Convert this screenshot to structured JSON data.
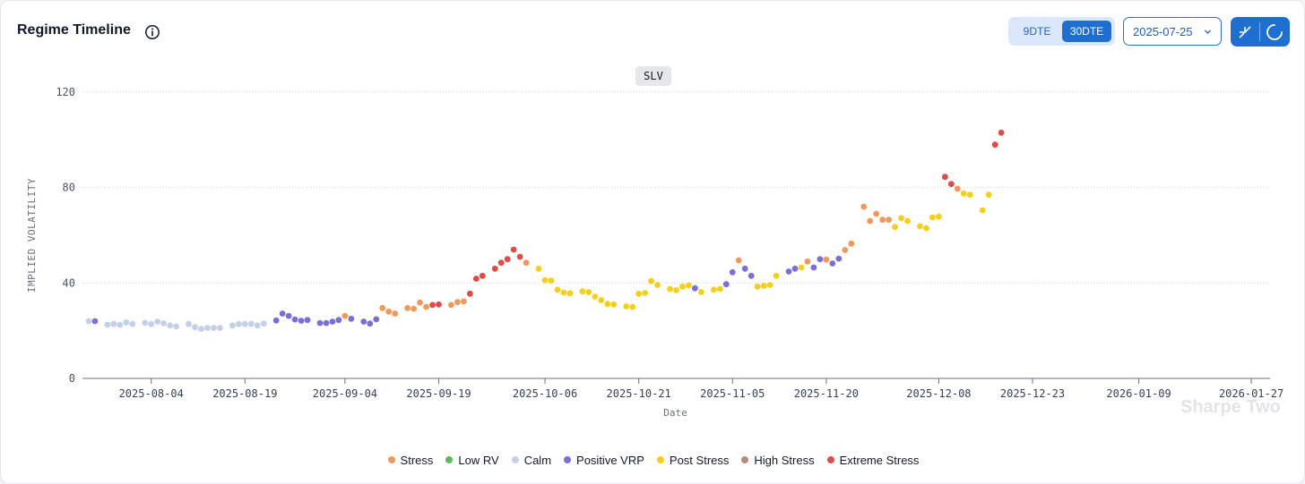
{
  "header": {
    "title": "Regime Timeline",
    "toggle": {
      "option_a": "9DTE",
      "option_b": "30DTE",
      "selected": "30DTE"
    },
    "date_select": {
      "value": "2025-07-25"
    }
  },
  "ticker_label": "SLV",
  "watermark": "Sharpe Two",
  "colors": {
    "Stress": "#f0995a",
    "Low RV": "#5fb85a",
    "Calm": "#c5cfe8",
    "Positive VRP": "#7a6fd6",
    "Post Stress": "#f5cf1a",
    "High Stress": "#b58b7d",
    "Extreme Stress": "#e04b45",
    "accent": "#1f6fd1"
  },
  "chart_data": {
    "type": "scatter",
    "xlabel": "Date",
    "ylabel": "IMPLIED VOLATILITY",
    "ylim": [
      0,
      120
    ],
    "yticks": [
      0,
      40,
      80,
      120
    ],
    "xlim": [
      "2025-07-24",
      "2026-01-30"
    ],
    "xticks": [
      "2025-08-04",
      "2025-08-19",
      "2025-09-04",
      "2025-09-19",
      "2025-10-06",
      "2025-10-21",
      "2025-11-05",
      "2025-11-20",
      "2025-12-08",
      "2025-12-23",
      "2026-01-09",
      "2026-01-27"
    ],
    "grid": true,
    "legend_position": "bottom",
    "legend": [
      "Stress",
      "Low RV",
      "Calm",
      "Positive VRP",
      "Post Stress",
      "High Stress",
      "Extreme Stress"
    ],
    "points": [
      {
        "date": "2025-07-25",
        "value": 24,
        "regime": "Calm"
      },
      {
        "date": "2025-07-26",
        "value": 24,
        "regime": "Positive VRP"
      },
      {
        "date": "2025-07-28",
        "value": 22.5,
        "regime": "Calm"
      },
      {
        "date": "2025-07-29",
        "value": 22.8,
        "regime": "Calm"
      },
      {
        "date": "2025-07-30",
        "value": 22.5,
        "regime": "Calm"
      },
      {
        "date": "2025-07-31",
        "value": 23.5,
        "regime": "Calm"
      },
      {
        "date": "2025-08-01",
        "value": 22.8,
        "regime": "Calm"
      },
      {
        "date": "2025-08-03",
        "value": 23.3,
        "regime": "Calm"
      },
      {
        "date": "2025-08-04",
        "value": 22.8,
        "regime": "Calm"
      },
      {
        "date": "2025-08-05",
        "value": 23.8,
        "regime": "Calm"
      },
      {
        "date": "2025-08-06",
        "value": 23.1,
        "regime": "Calm"
      },
      {
        "date": "2025-08-07",
        "value": 22.2,
        "regime": "Calm"
      },
      {
        "date": "2025-08-08",
        "value": 21.8,
        "regime": "Calm"
      },
      {
        "date": "2025-08-10",
        "value": 22.8,
        "regime": "Calm"
      },
      {
        "date": "2025-08-11",
        "value": 21.5,
        "regime": "Calm"
      },
      {
        "date": "2025-08-12",
        "value": 20.8,
        "regime": "Calm"
      },
      {
        "date": "2025-08-13",
        "value": 21.2,
        "regime": "Calm"
      },
      {
        "date": "2025-08-14",
        "value": 21.2,
        "regime": "Calm"
      },
      {
        "date": "2025-08-15",
        "value": 21.2,
        "regime": "Calm"
      },
      {
        "date": "2025-08-17",
        "value": 22.2,
        "regime": "Calm"
      },
      {
        "date": "2025-08-18",
        "value": 22.8,
        "regime": "Calm"
      },
      {
        "date": "2025-08-19",
        "value": 22.8,
        "regime": "Calm"
      },
      {
        "date": "2025-08-20",
        "value": 22.8,
        "regime": "Calm"
      },
      {
        "date": "2025-08-21",
        "value": 22.2,
        "regime": "Calm"
      },
      {
        "date": "2025-08-22",
        "value": 23,
        "regime": "Calm"
      },
      {
        "date": "2025-08-24",
        "value": 24.3,
        "regime": "Positive VRP"
      },
      {
        "date": "2025-08-25",
        "value": 27.2,
        "regime": "Positive VRP"
      },
      {
        "date": "2025-08-26",
        "value": 26.2,
        "regime": "Positive VRP"
      },
      {
        "date": "2025-08-27",
        "value": 24.7,
        "regime": "Positive VRP"
      },
      {
        "date": "2025-08-28",
        "value": 24.2,
        "regime": "Positive VRP"
      },
      {
        "date": "2025-08-29",
        "value": 24.5,
        "regime": "Positive VRP"
      },
      {
        "date": "2025-08-31",
        "value": 23.2,
        "regime": "Positive VRP"
      },
      {
        "date": "2025-09-01",
        "value": 23.2,
        "regime": "Positive VRP"
      },
      {
        "date": "2025-09-02",
        "value": 23.8,
        "regime": "Positive VRP"
      },
      {
        "date": "2025-09-03",
        "value": 24.5,
        "regime": "Positive VRP"
      },
      {
        "date": "2025-09-04",
        "value": 26.2,
        "regime": "Stress"
      },
      {
        "date": "2025-09-05",
        "value": 25,
        "regime": "Positive VRP"
      },
      {
        "date": "2025-09-07",
        "value": 23.8,
        "regime": "Positive VRP"
      },
      {
        "date": "2025-09-08",
        "value": 23,
        "regime": "Positive VRP"
      },
      {
        "date": "2025-09-09",
        "value": 24.8,
        "regime": "Positive VRP"
      },
      {
        "date": "2025-09-10",
        "value": 29.5,
        "regime": "Stress"
      },
      {
        "date": "2025-09-11",
        "value": 28,
        "regime": "Stress"
      },
      {
        "date": "2025-09-12",
        "value": 27.2,
        "regime": "Stress"
      },
      {
        "date": "2025-09-14",
        "value": 29.5,
        "regime": "Stress"
      },
      {
        "date": "2025-09-15",
        "value": 29.2,
        "regime": "Stress"
      },
      {
        "date": "2025-09-16",
        "value": 31.8,
        "regime": "Stress"
      },
      {
        "date": "2025-09-17",
        "value": 30,
        "regime": "Stress"
      },
      {
        "date": "2025-09-18",
        "value": 30.8,
        "regime": "Extreme Stress"
      },
      {
        "date": "2025-09-19",
        "value": 31,
        "regime": "Extreme Stress"
      },
      {
        "date": "2025-09-21",
        "value": 30.8,
        "regime": "Stress"
      },
      {
        "date": "2025-09-22",
        "value": 32,
        "regime": "Stress"
      },
      {
        "date": "2025-09-23",
        "value": 32.3,
        "regime": "Stress"
      },
      {
        "date": "2025-09-24",
        "value": 35.5,
        "regime": "Extreme Stress"
      },
      {
        "date": "2025-09-25",
        "value": 41.8,
        "regime": "Extreme Stress"
      },
      {
        "date": "2025-09-26",
        "value": 43,
        "regime": "Extreme Stress"
      },
      {
        "date": "2025-09-28",
        "value": 46,
        "regime": "Extreme Stress"
      },
      {
        "date": "2025-09-29",
        "value": 48.5,
        "regime": "Extreme Stress"
      },
      {
        "date": "2025-09-30",
        "value": 50,
        "regime": "Extreme Stress"
      },
      {
        "date": "2025-10-01",
        "value": 54,
        "regime": "Extreme Stress"
      },
      {
        "date": "2025-10-02",
        "value": 51,
        "regime": "Extreme Stress"
      },
      {
        "date": "2025-10-03",
        "value": 48.5,
        "regime": "Stress"
      },
      {
        "date": "2025-10-05",
        "value": 46,
        "regime": "Post Stress"
      },
      {
        "date": "2025-10-06",
        "value": 41.2,
        "regime": "Post Stress"
      },
      {
        "date": "2025-10-07",
        "value": 41,
        "regime": "Post Stress"
      },
      {
        "date": "2025-10-08",
        "value": 37.2,
        "regime": "Post Stress"
      },
      {
        "date": "2025-10-09",
        "value": 36,
        "regime": "Post Stress"
      },
      {
        "date": "2025-10-10",
        "value": 35.7,
        "regime": "Post Stress"
      },
      {
        "date": "2025-10-12",
        "value": 36.5,
        "regime": "Post Stress"
      },
      {
        "date": "2025-10-13",
        "value": 36.2,
        "regime": "Post Stress"
      },
      {
        "date": "2025-10-14",
        "value": 34.3,
        "regime": "Post Stress"
      },
      {
        "date": "2025-10-15",
        "value": 32.8,
        "regime": "Post Stress"
      },
      {
        "date": "2025-10-16",
        "value": 31.2,
        "regime": "Post Stress"
      },
      {
        "date": "2025-10-17",
        "value": 31,
        "regime": "Post Stress"
      },
      {
        "date": "2025-10-19",
        "value": 30.2,
        "regime": "Post Stress"
      },
      {
        "date": "2025-10-20",
        "value": 30,
        "regime": "Post Stress"
      },
      {
        "date": "2025-10-21",
        "value": 35.5,
        "regime": "Post Stress"
      },
      {
        "date": "2025-10-22",
        "value": 35.8,
        "regime": "Post Stress"
      },
      {
        "date": "2025-10-23",
        "value": 40.8,
        "regime": "Post Stress"
      },
      {
        "date": "2025-10-24",
        "value": 39.2,
        "regime": "Post Stress"
      },
      {
        "date": "2025-10-26",
        "value": 37.5,
        "regime": "Post Stress"
      },
      {
        "date": "2025-10-27",
        "value": 37,
        "regime": "Post Stress"
      },
      {
        "date": "2025-10-28",
        "value": 38.5,
        "regime": "Post Stress"
      },
      {
        "date": "2025-10-29",
        "value": 39,
        "regime": "Post Stress"
      },
      {
        "date": "2025-10-30",
        "value": 37.8,
        "regime": "Positive VRP"
      },
      {
        "date": "2025-10-31",
        "value": 36.2,
        "regime": "Post Stress"
      },
      {
        "date": "2025-11-02",
        "value": 37.2,
        "regime": "Post Stress"
      },
      {
        "date": "2025-11-03",
        "value": 37.5,
        "regime": "Post Stress"
      },
      {
        "date": "2025-11-04",
        "value": 39.5,
        "regime": "Positive VRP"
      },
      {
        "date": "2025-11-05",
        "value": 44.5,
        "regime": "Positive VRP"
      },
      {
        "date": "2025-11-06",
        "value": 49.5,
        "regime": "Stress"
      },
      {
        "date": "2025-11-07",
        "value": 46,
        "regime": "Positive VRP"
      },
      {
        "date": "2025-11-08",
        "value": 43,
        "regime": "Positive VRP"
      },
      {
        "date": "2025-11-09",
        "value": 38.5,
        "regime": "Post Stress"
      },
      {
        "date": "2025-11-10",
        "value": 38.8,
        "regime": "Post Stress"
      },
      {
        "date": "2025-11-11",
        "value": 39.2,
        "regime": "Post Stress"
      },
      {
        "date": "2025-11-12",
        "value": 43,
        "regime": "Post Stress"
      },
      {
        "date": "2025-11-14",
        "value": 44.8,
        "regime": "Positive VRP"
      },
      {
        "date": "2025-11-15",
        "value": 46,
        "regime": "Positive VRP"
      },
      {
        "date": "2025-11-16",
        "value": 46.5,
        "regime": "Post Stress"
      },
      {
        "date": "2025-11-17",
        "value": 49,
        "regime": "Stress"
      },
      {
        "date": "2025-11-18",
        "value": 46.5,
        "regime": "Positive VRP"
      },
      {
        "date": "2025-11-19",
        "value": 50,
        "regime": "Positive VRP"
      },
      {
        "date": "2025-11-20",
        "value": 49.8,
        "regime": "Stress"
      },
      {
        "date": "2025-11-21",
        "value": 48.2,
        "regime": "Positive VRP"
      },
      {
        "date": "2025-11-22",
        "value": 50.2,
        "regime": "Positive VRP"
      },
      {
        "date": "2025-11-23",
        "value": 53.8,
        "regime": "Stress"
      },
      {
        "date": "2025-11-24",
        "value": 56.5,
        "regime": "Stress"
      },
      {
        "date": "2025-11-26",
        "value": 72,
        "regime": "Stress"
      },
      {
        "date": "2025-11-27",
        "value": 66,
        "regime": "Stress"
      },
      {
        "date": "2025-11-28",
        "value": 69,
        "regime": "Stress"
      },
      {
        "date": "2025-11-29",
        "value": 66.5,
        "regime": "Stress"
      },
      {
        "date": "2025-11-30",
        "value": 66.5,
        "regime": "Stress"
      },
      {
        "date": "2025-12-01",
        "value": 63.5,
        "regime": "Post Stress"
      },
      {
        "date": "2025-12-02",
        "value": 67.2,
        "regime": "Post Stress"
      },
      {
        "date": "2025-12-03",
        "value": 66,
        "regime": "Post Stress"
      },
      {
        "date": "2025-12-05",
        "value": 63.8,
        "regime": "Post Stress"
      },
      {
        "date": "2025-12-06",
        "value": 63,
        "regime": "Post Stress"
      },
      {
        "date": "2025-12-07",
        "value": 67.5,
        "regime": "Post Stress"
      },
      {
        "date": "2025-12-08",
        "value": 67.8,
        "regime": "Post Stress"
      },
      {
        "date": "2025-12-09",
        "value": 84.5,
        "regime": "Extreme Stress"
      },
      {
        "date": "2025-12-10",
        "value": 81.5,
        "regime": "Extreme Stress"
      },
      {
        "date": "2025-12-11",
        "value": 79.5,
        "regime": "Stress"
      },
      {
        "date": "2025-12-12",
        "value": 77.5,
        "regime": "Post Stress"
      },
      {
        "date": "2025-12-13",
        "value": 77,
        "regime": "Post Stress"
      },
      {
        "date": "2025-12-15",
        "value": 70.5,
        "regime": "Post Stress"
      },
      {
        "date": "2025-12-16",
        "value": 77,
        "regime": "Post Stress"
      },
      {
        "date": "2025-12-17",
        "value": 98,
        "regime": "Extreme Stress"
      },
      {
        "date": "2025-12-18",
        "value": 103,
        "regime": "Extreme Stress"
      }
    ]
  }
}
